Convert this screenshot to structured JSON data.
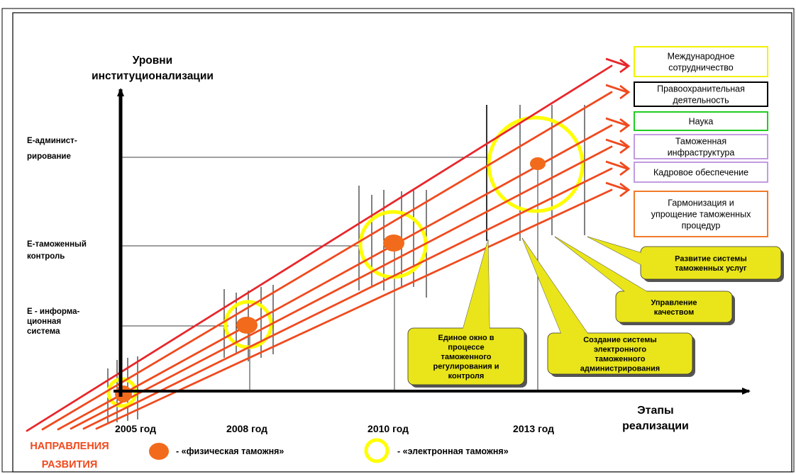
{
  "y_axis": {
    "title_line1": "Уровни",
    "title_line2": "институционализации",
    "levels": [
      {
        "line1": "E-админист-",
        "line2": "рирование",
        "line3": ""
      },
      {
        "line1": "E-таможенный",
        "line2": "контроль",
        "line3": ""
      },
      {
        "line1": "E - информа-",
        "line2": "ционная",
        "line3": "система"
      }
    ]
  },
  "x_axis": {
    "title_line1": "Этапы",
    "title_line2": "реализации",
    "stages": [
      "2005 год",
      "2008 год",
      "2010 год",
      "2013 год"
    ]
  },
  "directions_title_line1": "НАПРАВЛЕНИЯ",
  "directions_title_line2": "РАЗВИТИЯ",
  "directions": [
    {
      "lines": [
        "Международное",
        "сотрудничество",
        ""
      ],
      "color": "#f2f200"
    },
    {
      "lines": [
        "Правоохранительная",
        "деятельность",
        ""
      ],
      "color": "#000000"
    },
    {
      "lines": [
        "Наука",
        "",
        ""
      ],
      "color": "#22cc22"
    },
    {
      "lines": [
        "Таможенная",
        "инфраструктура",
        ""
      ],
      "color": "#c39be0"
    },
    {
      "lines": [
        "Кадровое обеспечение",
        "",
        ""
      ],
      "color": "#c39be0"
    },
    {
      "lines": [
        "Гармонизация и",
        "упрощение таможенных",
        "процедур"
      ],
      "color": "#f07a2a"
    }
  ],
  "callouts": [
    {
      "lines": [
        "Единое окно в",
        "процессе",
        "таможенного",
        "регулирования и",
        "контроля"
      ]
    },
    {
      "lines": [
        "Создание системы",
        "электронного",
        "таможенного",
        "администрирования"
      ]
    },
    {
      "lines": [
        "Управление",
        "качеством"
      ]
    },
    {
      "lines": [
        "Развитие системы",
        "таможенных услуг"
      ]
    }
  ],
  "legend": {
    "physical": "- «физическая таможня»",
    "electronic": "- «электронная таможня»"
  },
  "colors": {
    "arrow_top": "#e8262a",
    "arrow": "#f04a1e",
    "dot": "#f26a1b",
    "ring": "#ffff00",
    "callout_fill": "#e9e51a",
    "directions_label": "#f04a1e"
  }
}
